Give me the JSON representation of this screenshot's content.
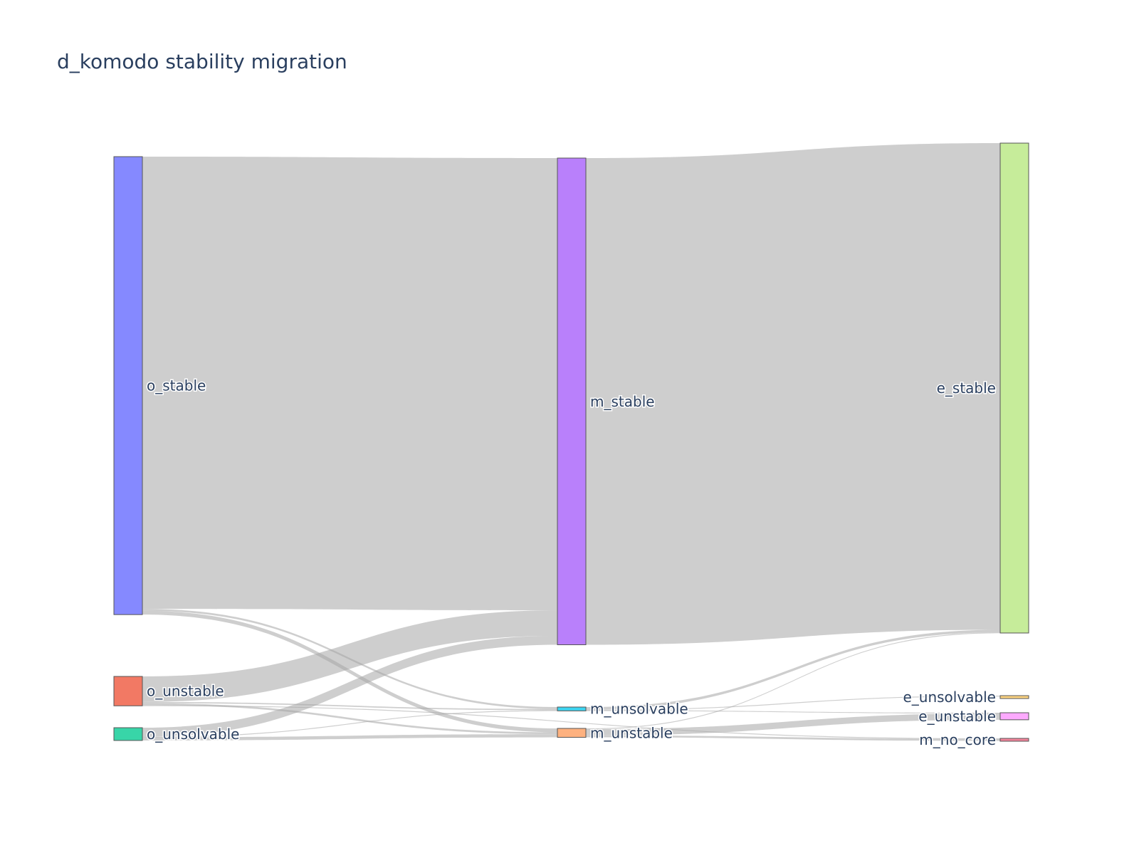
{
  "chart_data": {
    "type": "sankey",
    "title": "d_komodo stability migration",
    "link_color": "#a6a6a6",
    "nodes": [
      {
        "id": "o_stable",
        "label": "o_stable",
        "column": 0,
        "color": "#8589ff"
      },
      {
        "id": "o_unstable",
        "label": "o_unstable",
        "column": 0,
        "color": "#f27964"
      },
      {
        "id": "o_unsolvable",
        "label": "o_unsolvable",
        "column": 0,
        "color": "#38d5a8"
      },
      {
        "id": "m_stable",
        "label": "m_stable",
        "column": 1,
        "color": "#b980fb"
      },
      {
        "id": "m_unsolvable",
        "label": "m_unsolvable",
        "column": 1,
        "color": "#3dd4f0"
      },
      {
        "id": "m_unstable",
        "label": "m_unstable",
        "column": 1,
        "color": "#fdb17f"
      },
      {
        "id": "e_stable",
        "label": "e_stable",
        "column": 2,
        "color": "#c6ec9a"
      },
      {
        "id": "e_unsolvable",
        "label": "e_unsolvable",
        "column": 2,
        "color": "#fed581"
      },
      {
        "id": "e_unstable",
        "label": "e_unstable",
        "column": 2,
        "color": "#fdaafe"
      },
      {
        "id": "m_no_core",
        "label": "m_no_core",
        "column": 2,
        "color": "#f2849a"
      }
    ],
    "links": [
      {
        "source": "o_stable",
        "target": "m_stable",
        "value": 708
      },
      {
        "source": "o_stable",
        "target": "m_unsolvable",
        "value": 3
      },
      {
        "source": "o_stable",
        "target": "m_unstable",
        "value": 6
      },
      {
        "source": "o_unstable",
        "target": "m_stable",
        "value": 40
      },
      {
        "source": "o_unstable",
        "target": "m_unsolvable",
        "value": 2
      },
      {
        "source": "o_unstable",
        "target": "m_unstable",
        "value": 3
      },
      {
        "source": "o_unstable",
        "target": "m_no_core",
        "value": 1
      },
      {
        "source": "o_unsolvable",
        "target": "m_stable",
        "value": 14
      },
      {
        "source": "o_unsolvable",
        "target": "m_unsolvable",
        "value": 1
      },
      {
        "source": "o_unsolvable",
        "target": "m_unstable",
        "value": 5
      },
      {
        "source": "m_stable",
        "target": "e_stable",
        "value": 762
      },
      {
        "source": "m_unsolvable",
        "target": "e_stable",
        "value": 4
      },
      {
        "source": "m_unsolvable",
        "target": "e_unsolvable",
        "value": 1
      },
      {
        "source": "m_unsolvable",
        "target": "e_unstable",
        "value": 1
      },
      {
        "source": "m_unstable",
        "target": "e_stable",
        "value": 1
      },
      {
        "source": "m_unstable",
        "target": "e_unstable",
        "value": 10
      },
      {
        "source": "m_unstable",
        "target": "m_no_core",
        "value": 3
      }
    ]
  }
}
